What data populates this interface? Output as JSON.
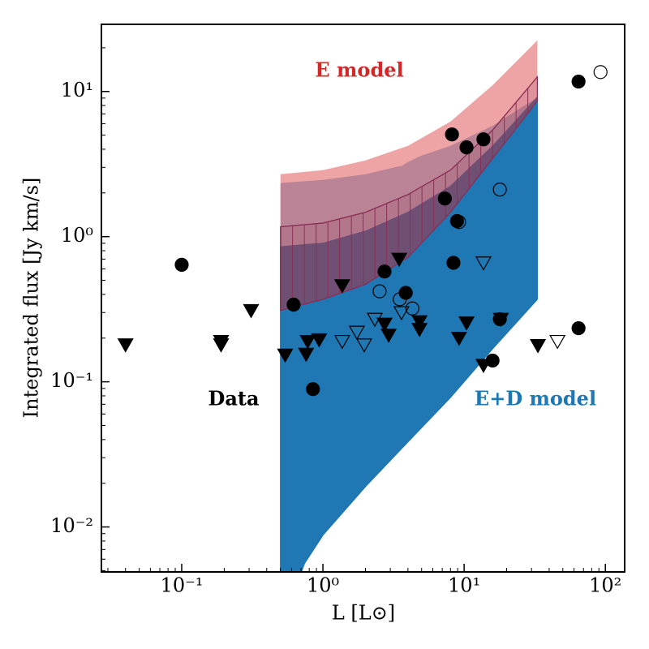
{
  "chart_data": {
    "type": "scatter",
    "log_x": true,
    "log_y": true,
    "x_label": "L [L⊙]",
    "y_label": "Integrated flux [Jy km/s]",
    "xlim": [
      0.027,
      137
    ],
    "ylim": [
      0.0049,
      29
    ],
    "xticks": [
      {
        "value": 0.1,
        "label": "10⁻¹"
      },
      {
        "value": 1,
        "label": "10⁰"
      },
      {
        "value": 10,
        "label": "10¹"
      },
      {
        "value": 100,
        "label": "10²"
      }
    ],
    "yticks": [
      {
        "value": 0.01,
        "label": "10⁻²"
      },
      {
        "value": 0.1,
        "label": "10⁻¹"
      },
      {
        "value": 1,
        "label": "10⁰"
      },
      {
        "value": 10,
        "label": "10¹"
      }
    ],
    "annotations": [
      "E model",
      "E+D model",
      "Data"
    ],
    "bands": [
      {
        "style": "fill",
        "color": "#a6c9e5",
        "alpha": 1,
        "x": [
          0.5,
          1,
          2,
          3.5,
          3.6,
          4,
          5,
          8,
          16,
          33
        ],
        "upper": [
          2.34,
          2.46,
          2.69,
          3.06,
          3.06,
          3.27,
          3.62,
          4.22,
          5.83,
          9.1
        ],
        "lower": [
          0.034,
          0.034,
          0.034,
          0.034,
          0.057,
          0.11,
          0.2,
          0.44,
          0.9,
          3.7
        ]
      },
      {
        "style": "hatch",
        "color": "#1f77b4",
        "alpha": 1,
        "x": [
          0.5,
          0.74,
          1,
          2,
          4,
          8,
          16,
          33
        ],
        "upper": [
          0.85,
          0.88,
          0.9,
          1.09,
          1.47,
          2.22,
          4.22,
          9.14
        ],
        "lower": [
          0.002,
          0.0056,
          0.0088,
          0.019,
          0.0386,
          0.078,
          0.17,
          0.37
        ]
      },
      {
        "style": "fill",
        "color": "#d62728",
        "alpha": 0.42,
        "x": [
          0.5,
          1,
          2,
          4,
          8,
          16,
          33
        ],
        "upper": [
          2.69,
          2.87,
          3.35,
          4.22,
          6.2,
          11.1,
          22.5
        ],
        "lower": [
          0.31,
          0.37,
          0.47,
          0.72,
          1.47,
          3.48,
          8.6
        ]
      },
      {
        "style": "hatch",
        "color": "#8b2f55",
        "alpha": 0.15,
        "x": [
          0.5,
          1,
          2,
          4,
          8,
          16,
          33
        ],
        "upper": [
          1.17,
          1.24,
          1.47,
          1.95,
          2.87,
          5.46,
          12.6
        ],
        "lower": [
          0.31,
          0.37,
          0.47,
          0.72,
          1.47,
          3.48,
          8.6
        ]
      }
    ],
    "series": [
      {
        "marker": "circle",
        "filled": true,
        "color": "#000000",
        "x": [
          0.1,
          0.62,
          0.85,
          2.73,
          3.86,
          8.2,
          10.4,
          13.7,
          7.3,
          8.9,
          8.4,
          17.9,
          15.9,
          64.6,
          64.6
        ],
        "values": [
          0.64,
          0.34,
          0.089,
          0.575,
          0.41,
          5.06,
          4.12,
          4.68,
          1.83,
          1.28,
          0.66,
          0.27,
          0.14,
          11.7,
          0.234
        ]
      },
      {
        "marker": "circle",
        "filled": false,
        "color": "#000000",
        "x": [
          92.4,
          17.9,
          9.2,
          2.52,
          3.5,
          4.3
        ],
        "values": [
          13.6,
          2.11,
          1.26,
          0.42,
          0.37,
          0.32
        ]
      },
      {
        "marker": "triangle",
        "filled": true,
        "color": "#000000",
        "x": [
          0.04,
          0.19,
          0.19,
          0.31,
          0.54,
          0.76,
          0.78,
          0.94,
          1.37,
          3.47,
          2.73,
          2.92,
          4.83,
          4.83,
          9.2,
          10.4,
          13.7,
          18.2,
          33.3
        ],
        "values": [
          0.18,
          0.19,
          0.18,
          0.31,
          0.153,
          0.155,
          0.19,
          0.195,
          0.46,
          0.7,
          0.25,
          0.21,
          0.26,
          0.23,
          0.2,
          0.255,
          0.13,
          0.27,
          0.178
        ]
      },
      {
        "marker": "triangle",
        "filled": false,
        "color": "#000000",
        "x": [
          1.37,
          1.74,
          1.96,
          2.33,
          3.6,
          13.7,
          45.8
        ],
        "values": [
          0.19,
          0.22,
          0.18,
          0.27,
          0.3,
          0.66,
          0.19
        ]
      }
    ]
  }
}
